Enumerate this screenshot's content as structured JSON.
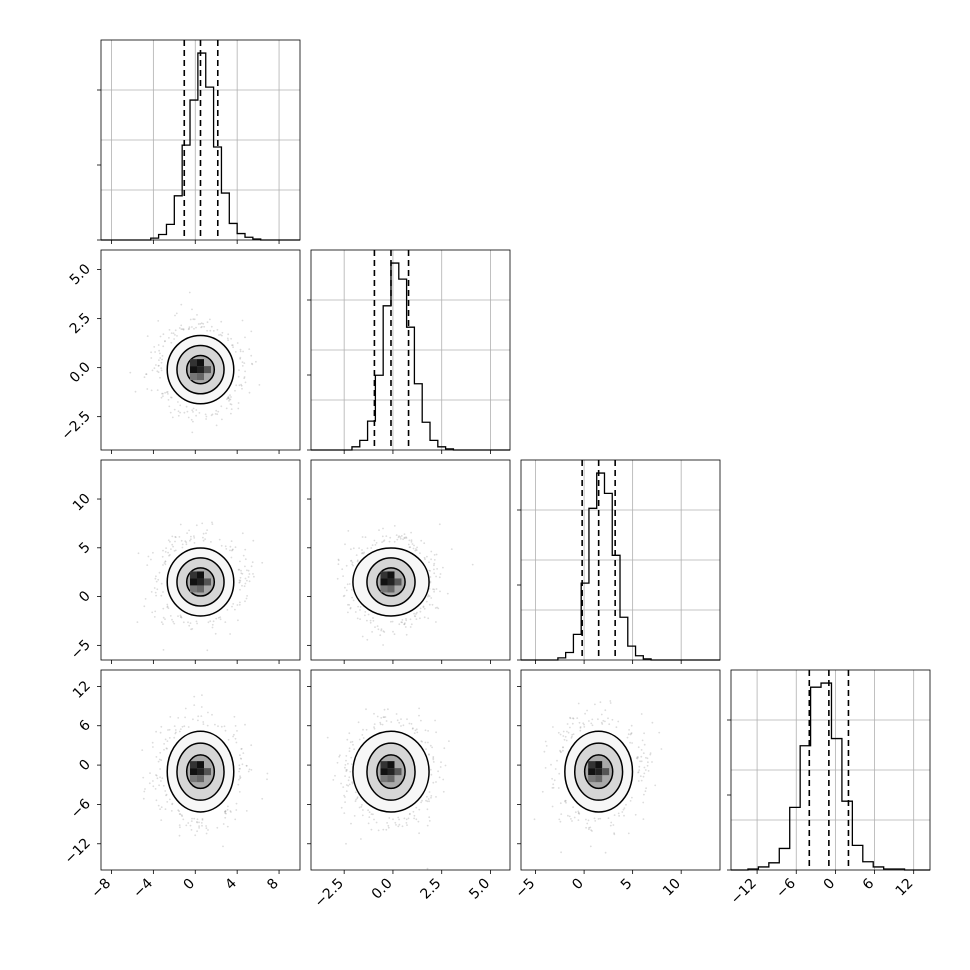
{
  "chart_data": {
    "type": "corner",
    "description_units": "4-parameter corner plot; histograms on diagonal with 16/50/84 percentile dashed lines; 2D density contours below diagonal",
    "params": [
      {
        "range": [
          -9.0,
          10.0
        ],
        "ticks": [
          "−8",
          "−4",
          "0",
          "4",
          "8"
        ],
        "tick_values": [
          -8,
          -4,
          0,
          4,
          8
        ],
        "quantiles": [
          -1.05,
          0.5,
          2.15
        ],
        "mean": 0.5,
        "sd": 1.55
      },
      {
        "range": [
          -4.2,
          6.0
        ],
        "ticks": [
          "−2.5",
          "0.0",
          "2.5",
          "5.0"
        ],
        "tick_values": [
          -2.5,
          0.0,
          2.5,
          5.0
        ],
        "quantiles": [
          -0.95,
          -0.1,
          0.8
        ],
        "mean": -0.1,
        "sd": 0.85
      },
      {
        "range": [
          -6.5,
          14.0
        ],
        "ticks": [
          "−5",
          "0",
          "5",
          "10"
        ],
        "tick_values": [
          -5,
          0,
          5,
          10
        ],
        "quantiles": [
          -0.2,
          1.5,
          3.2
        ],
        "mean": 1.5,
        "sd": 1.7
      },
      {
        "range": [
          -16.0,
          14.5
        ],
        "ticks": [
          "−12",
          "−6",
          "0",
          "6",
          "12"
        ],
        "tick_values": [
          -12,
          -6,
          0,
          6,
          12
        ],
        "quantiles": [
          -4.0,
          -1.0,
          2.0
        ],
        "mean": -1.0,
        "sd": 3.0
      }
    ],
    "histograms": [
      {
        "param": 0,
        "bin_edges": [
          -4.25,
          -3.5,
          -2.75,
          -2.0,
          -1.25,
          -0.5,
          0.25,
          1.0,
          1.75,
          2.5,
          3.25,
          4.0,
          4.75,
          5.5,
          6.25
        ],
        "counts": [
          2,
          6,
          17,
          48,
          103,
          152,
          203,
          166,
          101,
          51,
          18,
          7,
          3,
          1
        ]
      },
      {
        "param": 1,
        "bin_edges": [
          -2.1,
          -1.7,
          -1.3,
          -0.9,
          -0.5,
          -0.1,
          0.3,
          0.7,
          1.1,
          1.5,
          1.9,
          2.3,
          2.7,
          3.1
        ],
        "counts": [
          3,
          9,
          27,
          70,
          135,
          175,
          160,
          115,
          62,
          26,
          9,
          3,
          1
        ]
      },
      {
        "param": 2,
        "bin_edges": [
          -2.7,
          -1.9,
          -1.1,
          -0.3,
          0.5,
          1.3,
          2.1,
          2.9,
          3.7,
          4.5,
          5.3,
          6.1,
          6.9
        ],
        "counts": [
          2,
          7,
          24,
          72,
          142,
          175,
          156,
          98,
          40,
          13,
          4,
          1
        ]
      },
      {
        "param": 3,
        "bin_edges": [
          -13.4,
          -11.8,
          -10.2,
          -8.6,
          -7.0,
          -5.4,
          -3.8,
          -2.2,
          -0.6,
          1.0,
          2.6,
          4.2,
          5.8,
          7.4,
          9.0,
          10.6
        ],
        "counts": [
          1,
          3,
          7,
          21,
          61,
          121,
          178,
          182,
          128,
          67,
          24,
          8,
          3,
          1,
          1
        ]
      }
    ],
    "quantile_line_style": "dashed",
    "grid": true,
    "contour_levels": 3
  }
}
